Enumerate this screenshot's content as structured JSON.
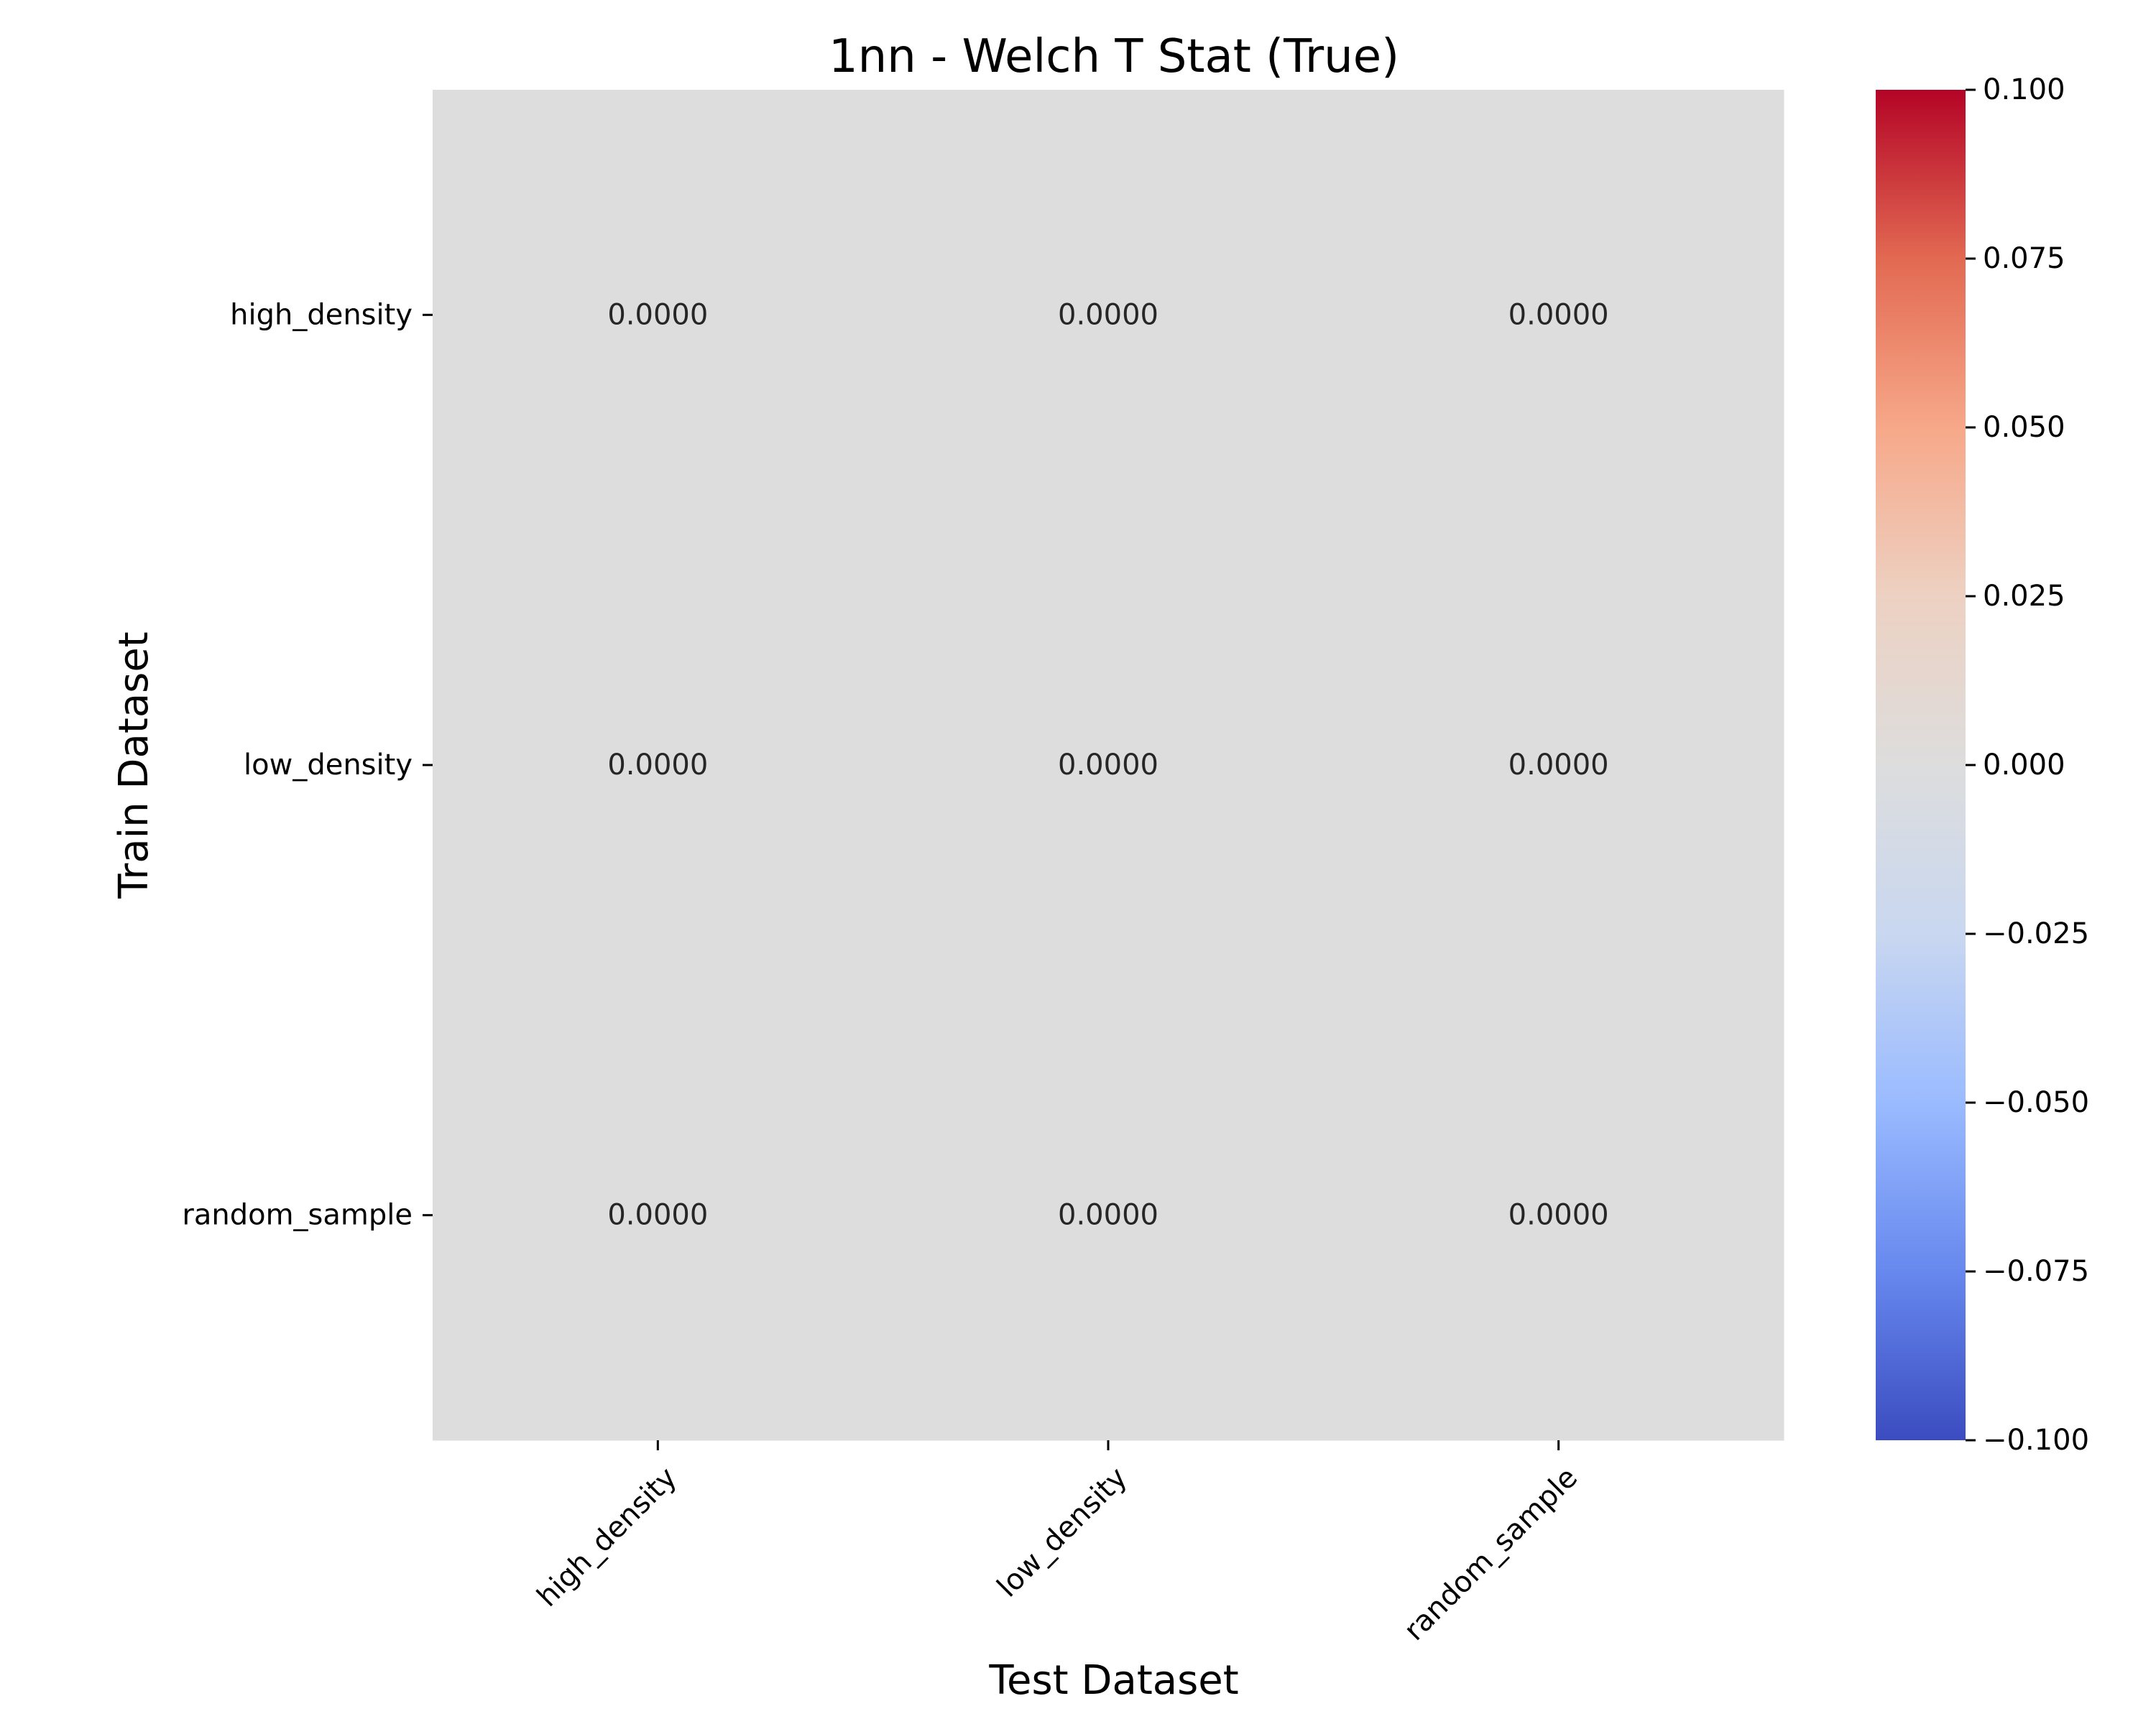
{
  "chart_data": {
    "type": "heatmap",
    "title": "1nn - Welch T Stat (True)",
    "xlabel": "Test Dataset",
    "ylabel": "Train Dataset",
    "x_categories": [
      "high_density",
      "low_density",
      "random_sample"
    ],
    "y_categories": [
      "high_density",
      "low_density",
      "random_sample"
    ],
    "values": [
      [
        0.0,
        0.0,
        0.0
      ],
      [
        0.0,
        0.0,
        0.0
      ],
      [
        0.0,
        0.0,
        0.0
      ]
    ],
    "cell_labels": [
      [
        "0.0000",
        "0.0000",
        "0.0000"
      ],
      [
        "0.0000",
        "0.0000",
        "0.0000"
      ],
      [
        "0.0000",
        "0.0000",
        "0.0000"
      ]
    ],
    "colormap": "coolwarm",
    "colorbar": {
      "range": [
        -0.1,
        0.1
      ],
      "ticks": [
        0.1,
        0.075,
        0.05,
        0.025,
        0.0,
        -0.025,
        -0.05,
        -0.075,
        -0.1
      ],
      "tick_labels": [
        "0.100",
        "0.075",
        "0.050",
        "0.025",
        "0.000",
        "−0.025",
        "−0.050",
        "−0.075",
        "−0.100"
      ],
      "colors": [
        "#3b4cc0",
        "#6788ee",
        "#9abbff",
        "#c9d7f0",
        "#dddddd",
        "#edd1c2",
        "#f7a889",
        "#e26952",
        "#b40426"
      ]
    },
    "grid": false
  }
}
